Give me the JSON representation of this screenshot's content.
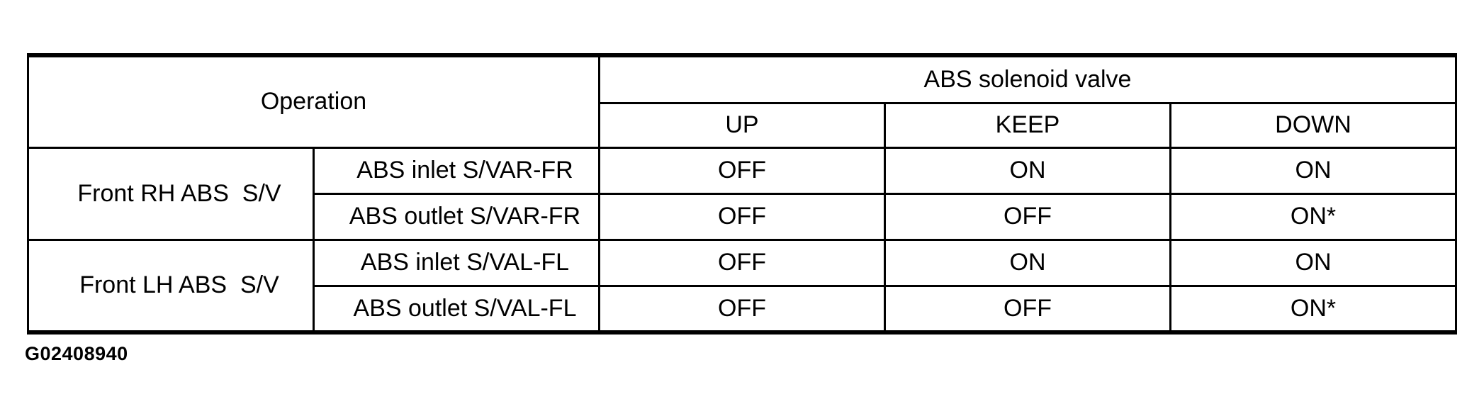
{
  "table": {
    "operation_header": "Operation",
    "group_header": "ABS solenoid valve",
    "sub_headers": [
      "UP",
      "KEEP",
      "DOWN"
    ],
    "rows": [
      {
        "group": "Front RH ABS  S/V",
        "valve": "ABS inlet S/VAR-FR",
        "up": "OFF",
        "keep": "ON",
        "down": "ON"
      },
      {
        "valve": "ABS outlet S/VAR-FR",
        "up": "OFF",
        "keep": "OFF",
        "down": "ON*"
      },
      {
        "group": "Front LH ABS  S/V",
        "valve": "ABS inlet S/VAL-FL",
        "up": "OFF",
        "keep": "ON",
        "down": "ON"
      },
      {
        "valve": "ABS outlet S/VAL-FL",
        "up": "OFF",
        "keep": "OFF",
        "down": "ON*"
      }
    ]
  },
  "caption": {
    "figure_code": "G02408940"
  },
  "colors": {
    "text": "#000000",
    "lines": "#000000",
    "background": "#ffffff"
  }
}
